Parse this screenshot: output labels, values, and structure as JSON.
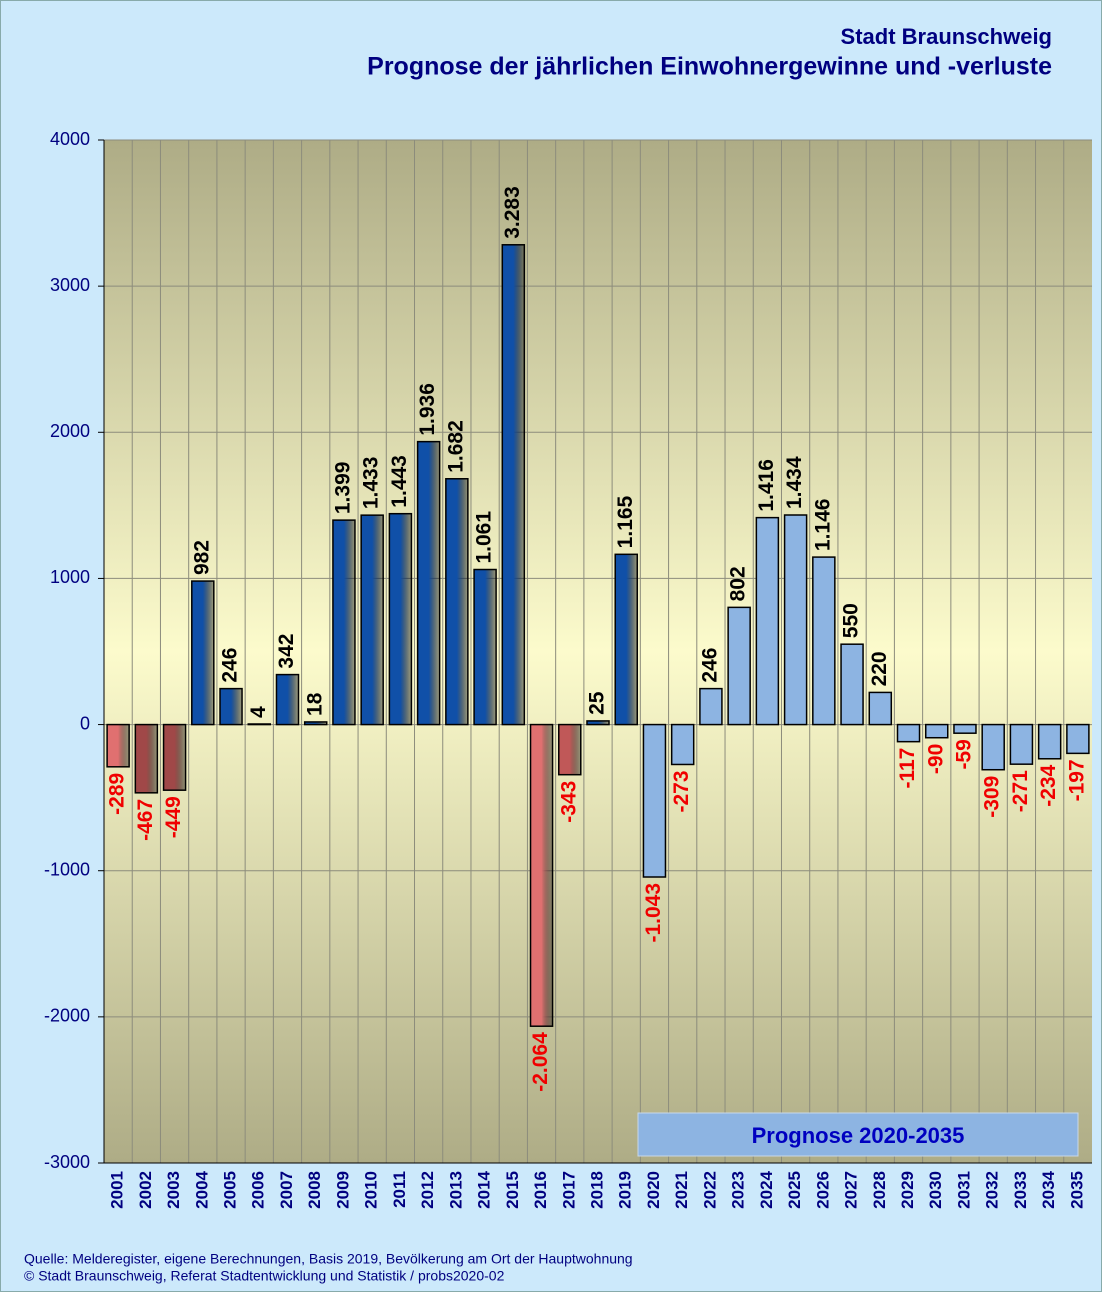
{
  "chart_data": {
    "type": "bar",
    "title": "Stadt Braunschweig",
    "subtitle": "Prognose der jährlichen Einwohnergewinne und -verluste",
    "annotation": "Prognose 2020-2035",
    "source": [
      "Quelle: Melderegister, eigene Berechnungen, Basis 2019, Bevölkerung am Ort der Hauptwohnung",
      "© Stadt Braunschweig, Referat Stadtentwicklung und Statistik / probs2020-02"
    ],
    "categories": [
      "2001",
      "2002",
      "2003",
      "2004",
      "2005",
      "2006",
      "2007",
      "2008",
      "2009",
      "2010",
      "2011",
      "2012",
      "2013",
      "2014",
      "2015",
      "2016",
      "2017",
      "2018",
      "2019",
      "2020",
      "2021",
      "2022",
      "2023",
      "2024",
      "2025",
      "2026",
      "2027",
      "2028",
      "2029",
      "2030",
      "2031",
      "2032",
      "2033",
      "2034",
      "2035"
    ],
    "values": [
      -289,
      -467,
      -449,
      982,
      246,
      4,
      342,
      18,
      1399,
      1433,
      1443,
      1936,
      1682,
      1061,
      3283,
      -2064,
      -343,
      25,
      1165,
      -1043,
      -273,
      246,
      802,
      1416,
      1434,
      1146,
      550,
      220,
      -117,
      -90,
      -59,
      -309,
      -271,
      -234,
      -197
    ],
    "value_labels": [
      "-289",
      "-467",
      "-449",
      "982",
      "246",
      "4",
      "342",
      "18",
      "1.399",
      "1.433",
      "1.443",
      "1.936",
      "1.682",
      "1.061",
      "3.283",
      "-2.064",
      "-343",
      "25",
      "1.165",
      "-1.043",
      "-273",
      "246",
      "802",
      "1.416",
      "1.434",
      "1.146",
      "550",
      "220",
      "-117",
      "-90",
      "-59",
      "-309",
      "-271",
      "-234",
      "-197"
    ],
    "colors": [
      "#e07070",
      "#a04848",
      "#a04848",
      "#1050a8",
      "#1050a8",
      "#1050a8",
      "#1050a8",
      "#1050a8",
      "#1050a8",
      "#1050a8",
      "#1050a8",
      "#1050a8",
      "#1050a8",
      "#1050a8",
      "#1050a8",
      "#e07070",
      "#c05858",
      "#1050a8",
      "#1050a8",
      "#8db4e2",
      "#8db4e2",
      "#8db4e2",
      "#8db4e2",
      "#8db4e2",
      "#8db4e2",
      "#8db4e2",
      "#8db4e2",
      "#8db4e2",
      "#8db4e2",
      "#8db4e2",
      "#8db4e2",
      "#8db4e2",
      "#8db4e2",
      "#8db4e2",
      "#8db4e2"
    ],
    "ylim": [
      -3000,
      4000
    ],
    "yticks": [
      -3000,
      -2000,
      -1000,
      0,
      1000,
      2000,
      3000,
      4000
    ],
    "grid": true
  }
}
